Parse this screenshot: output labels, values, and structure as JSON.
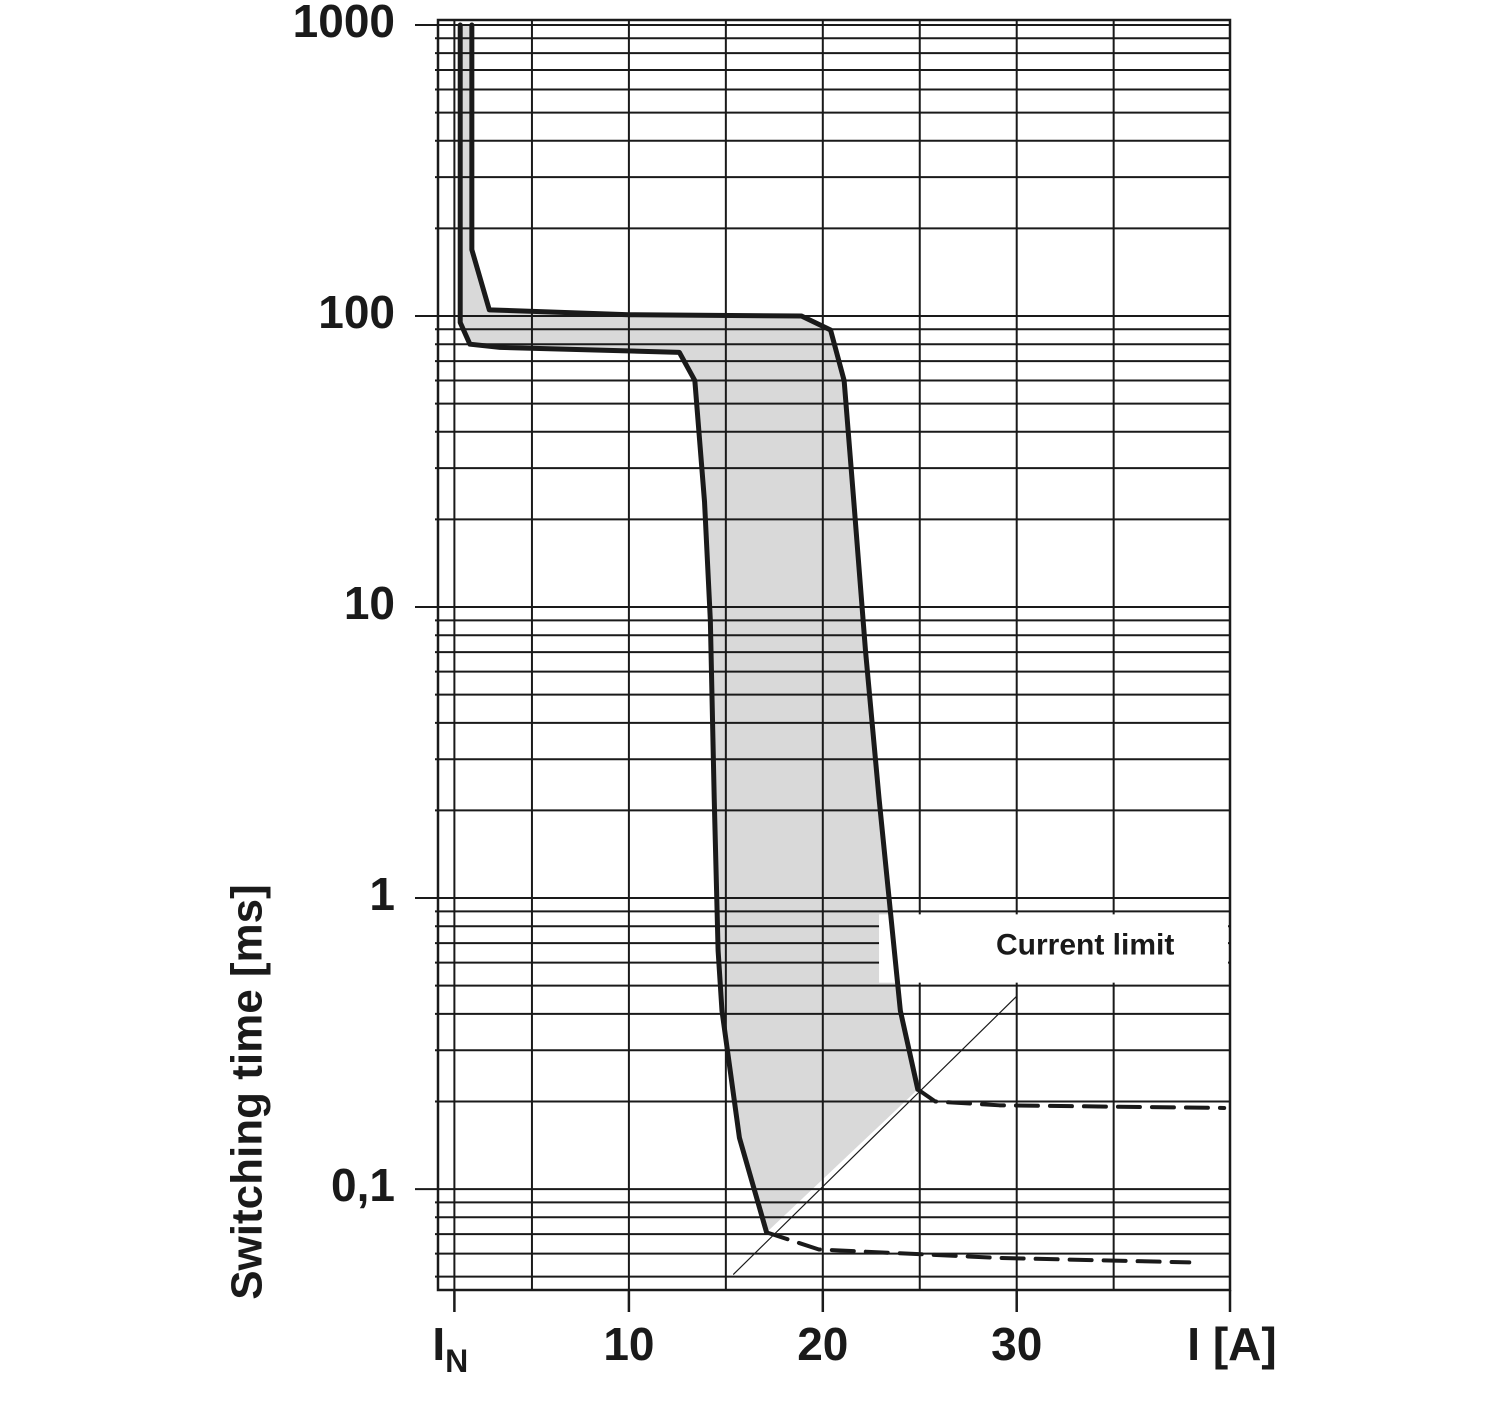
{
  "chart_data": {
    "type": "line",
    "y_label": "Switching time [ms]",
    "x_label": "I [A]",
    "annotation": "Current limit",
    "log_y": true,
    "xlim": [
      0,
      41
    ],
    "ylim": [
      0.045,
      1040
    ],
    "xticks": [
      {
        "value": 1,
        "label": "I",
        "subscript": "N"
      },
      10,
      20,
      30
    ],
    "xgrid": [
      1,
      5,
      10,
      15,
      20,
      25,
      30,
      35
    ],
    "yticks": [
      {
        "value": 0.1,
        "label": "0,1"
      },
      1,
      10,
      100,
      1000
    ],
    "yminor": [
      0.05,
      0.06,
      0.07,
      0.08,
      0.09,
      0.2,
      0.3,
      0.4,
      0.5,
      0.6,
      0.7,
      0.8,
      0.9,
      2,
      3,
      4,
      5,
      6,
      7,
      8,
      9,
      20,
      30,
      40,
      50,
      60,
      70,
      80,
      90,
      200,
      300,
      400,
      500,
      600,
      700,
      800,
      900
    ],
    "band_color": "#d9d9d9",
    "series": [
      {
        "color": "#1a1a1a",
        "style": "solid",
        "width": 5,
        "x": [
          1.9,
          1.9,
          2.8,
          10,
          18.9,
          20.4,
          21.1,
          21.6,
          22.2,
          22.9,
          24,
          24.9
        ],
        "values": [
          1000,
          169,
          105,
          101,
          100,
          89.5,
          60,
          23,
          7.1,
          2.2,
          0.41,
          0.22
        ]
      },
      {
        "color": "#1a1a1a",
        "style": "solid",
        "width": 5,
        "x": [
          1.3,
          1.3,
          1.8,
          3.35,
          12.6,
          13.4,
          13.9,
          14.2,
          14.4,
          14.6,
          14.8,
          15.7,
          17.1
        ],
        "values": [
          1000,
          95,
          80,
          78,
          75,
          60,
          23,
          9,
          2.2,
          0.66,
          0.41,
          0.15,
          0.071
        ]
      },
      {
        "color": "#1a1a1a",
        "style": "dashed",
        "width": 4,
        "x": [
          24.9,
          25.8,
          29.1,
          40.7
        ],
        "values": [
          0.22,
          0.2,
          0.194,
          0.19
        ]
      },
      {
        "color": "#1a1a1a",
        "style": "dashed",
        "width": 4,
        "x": [
          17.1,
          19.8,
          29.1,
          38.9
        ],
        "values": [
          0.071,
          0.062,
          0.058,
          0.056
        ]
      },
      {
        "color": "#1a1a1a",
        "style": "solid",
        "width": 1.2,
        "x": [
          15.4,
          30
        ],
        "values": [
          0.051,
          0.46
        ]
      }
    ]
  }
}
